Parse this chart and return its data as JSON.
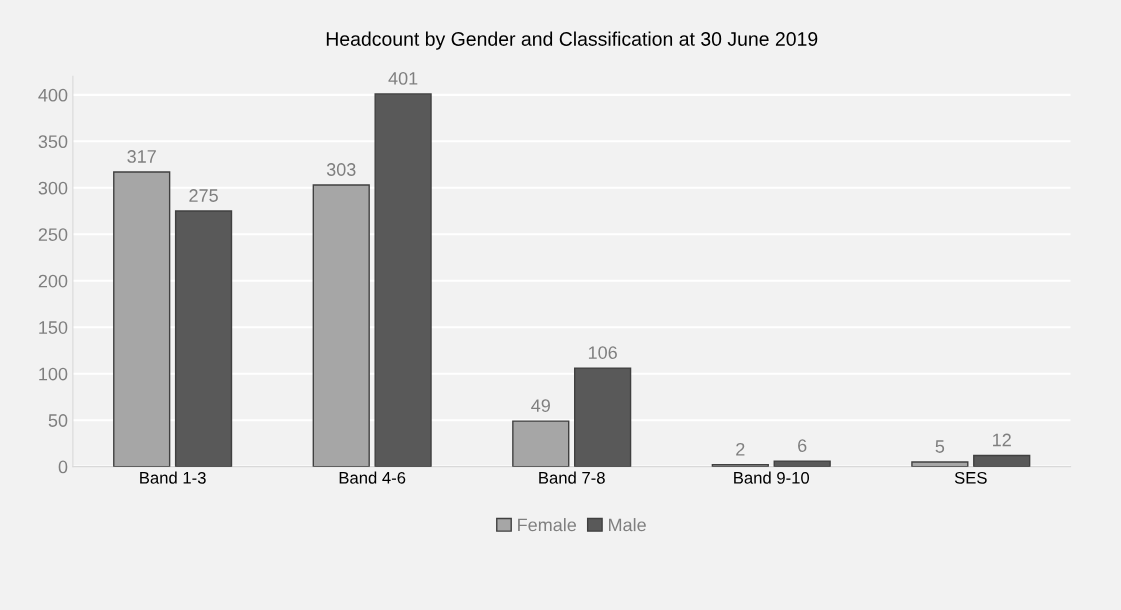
{
  "chart_data": {
    "type": "bar",
    "title": "Headcount by Gender and Classification at 30 June 2019",
    "categories": [
      "Band 1-3",
      "Band 4-6",
      "Band 7-8",
      "Band 9-10",
      "SES"
    ],
    "series": [
      {
        "name": "Female",
        "color": "#a6a6a6",
        "values": [
          317,
          303,
          49,
          2,
          5
        ]
      },
      {
        "name": "Male",
        "color": "#595959",
        "values": [
          275,
          401,
          106,
          6,
          12
        ]
      }
    ],
    "ylim": [
      0,
      420
    ],
    "yticks": [
      0,
      50,
      100,
      150,
      200,
      250,
      300,
      350,
      400
    ],
    "grid": "y",
    "legend": "bottom",
    "data_labels": true
  }
}
